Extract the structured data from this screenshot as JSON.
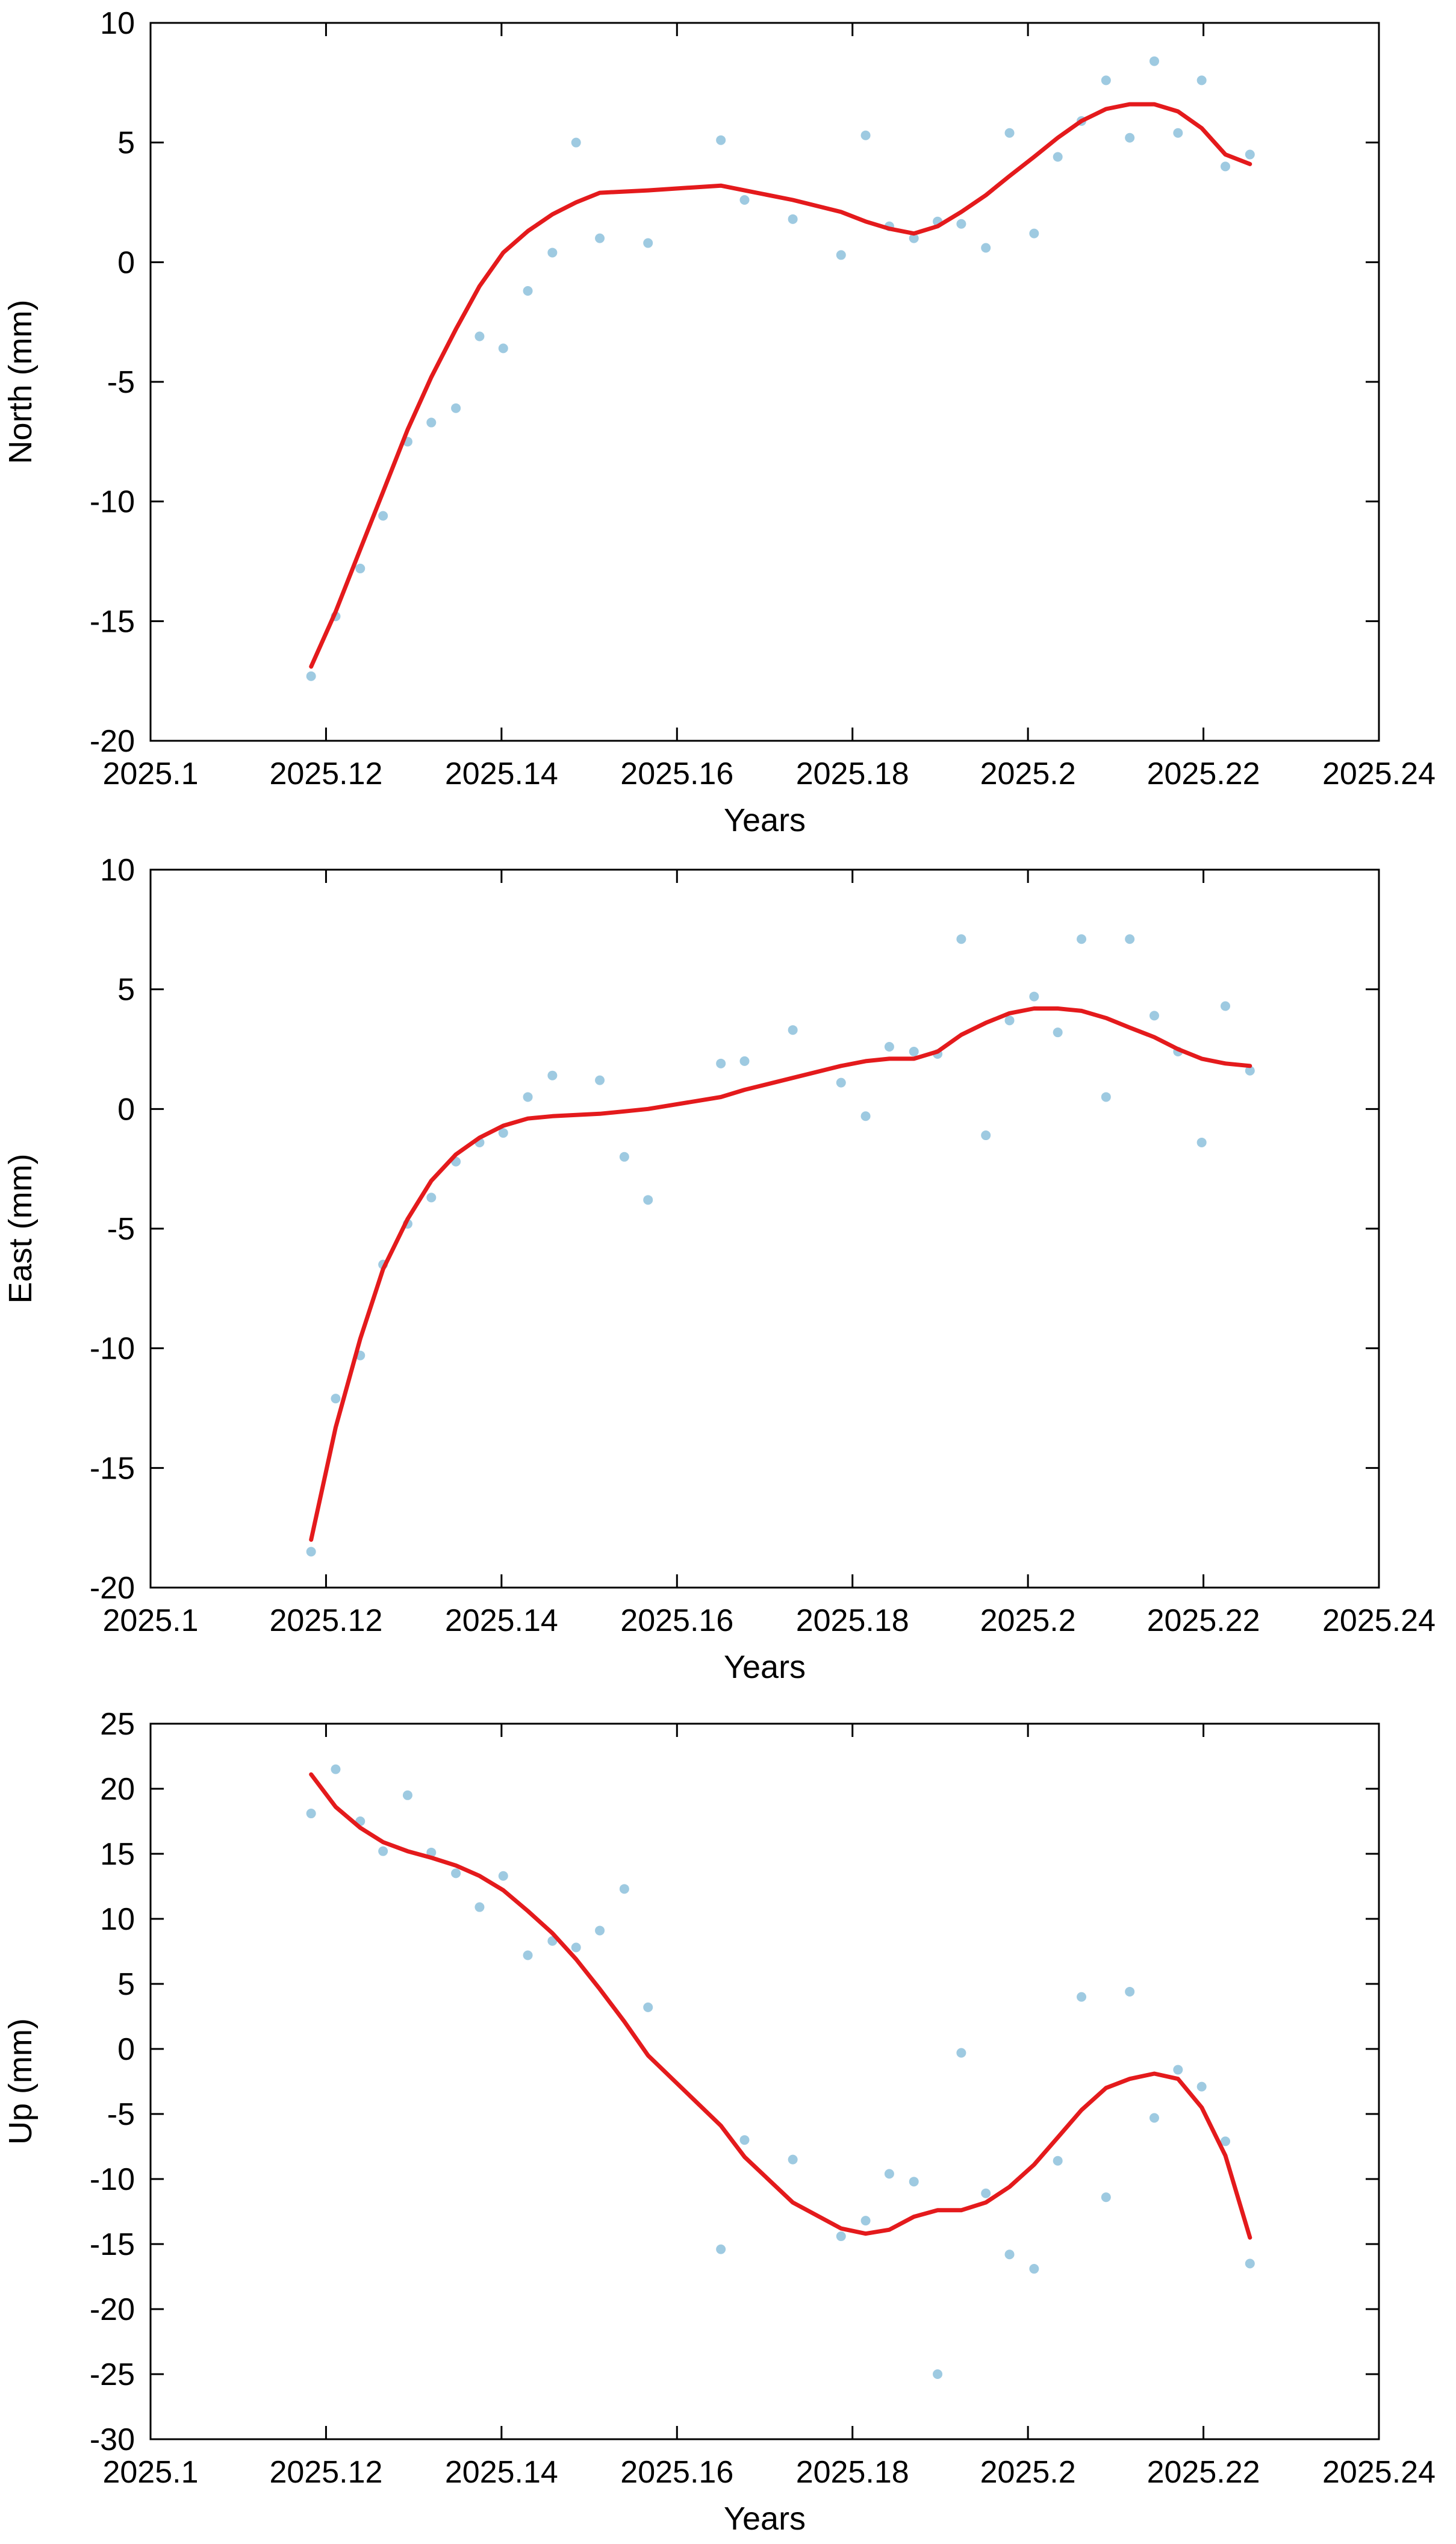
{
  "colors": {
    "points": "#9ecae1",
    "fit": "#e41a1c",
    "axis": "#000000"
  },
  "chart_data": [
    {
      "type": "scatter",
      "xlabel": "Years",
      "ylabel": "North (mm)",
      "xlim": [
        2025.1,
        2025.24
      ],
      "ylim": [
        -20,
        10
      ],
      "xticks": [
        "2025.1",
        "2025.12",
        "2025.14",
        "2025.16",
        "2025.18",
        "2025.2",
        "2025.22",
        "2025.24"
      ],
      "yticks": [
        "-20",
        "-15",
        "-10",
        "-5",
        "0",
        "5",
        "10"
      ],
      "grid": false,
      "series": [
        {
          "kind": "points",
          "x": [
            2025.1183,
            2025.1211,
            2025.1239,
            2025.1265,
            2025.1293,
            2025.132,
            2025.1348,
            2025.1375,
            2025.1402,
            2025.143,
            2025.1458,
            2025.1485,
            2025.1512,
            2025.1567,
            2025.165,
            2025.1677,
            2025.1732,
            2025.1787,
            2025.1815,
            2025.1842,
            2025.187,
            2025.1897,
            2025.1924,
            2025.1952,
            2025.1979,
            2025.2007,
            2025.2034,
            2025.2061,
            2025.2089,
            2025.2116,
            2025.2144,
            2025.2171,
            2025.2198,
            2025.2225,
            2025.2253
          ],
          "y": [
            -17.3,
            -14.8,
            -12.8,
            -10.6,
            -7.5,
            -6.7,
            -6.1,
            -3.1,
            -3.6,
            -1.2,
            0.4,
            5.0,
            1.0,
            0.8,
            5.1,
            2.6,
            1.8,
            0.3,
            5.3,
            1.5,
            1.0,
            1.7,
            1.6,
            0.6,
            5.4,
            1.2,
            4.4,
            5.9,
            7.6,
            5.2,
            8.4,
            5.4,
            7.6,
            4.0,
            4.5
          ]
        },
        {
          "kind": "fit",
          "x": [
            2025.1183,
            2025.1211,
            2025.1239,
            2025.1265,
            2025.1293,
            2025.132,
            2025.1348,
            2025.1375,
            2025.1402,
            2025.143,
            2025.1458,
            2025.1485,
            2025.1512,
            2025.1567,
            2025.165,
            2025.1677,
            2025.1732,
            2025.1787,
            2025.1815,
            2025.1842,
            2025.187,
            2025.1897,
            2025.1924,
            2025.1952,
            2025.1979,
            2025.2007,
            2025.2034,
            2025.2061,
            2025.2089,
            2025.2116,
            2025.2144,
            2025.2171,
            2025.2198,
            2025.2225,
            2025.2253
          ],
          "y": [
            -16.9,
            -14.6,
            -12.0,
            -9.6,
            -7.0,
            -4.8,
            -2.8,
            -1.0,
            0.4,
            1.3,
            2.0,
            2.5,
            2.9,
            3.0,
            3.2,
            3.0,
            2.6,
            2.1,
            1.7,
            1.4,
            1.2,
            1.5,
            2.1,
            2.8,
            3.6,
            4.4,
            5.2,
            5.9,
            6.4,
            6.6,
            6.6,
            6.3,
            5.6,
            4.5,
            4.1
          ]
        }
      ]
    },
    {
      "type": "scatter",
      "xlabel": "Years",
      "ylabel": "East (mm)",
      "xlim": [
        2025.1,
        2025.24
      ],
      "ylim": [
        -20,
        10
      ],
      "xticks": [
        "2025.1",
        "2025.12",
        "2025.14",
        "2025.16",
        "2025.18",
        "2025.2",
        "2025.22",
        "2025.24"
      ],
      "yticks": [
        "-20",
        "-15",
        "-10",
        "-5",
        "0",
        "5",
        "10"
      ],
      "grid": false,
      "series": [
        {
          "kind": "points",
          "x": [
            2025.1183,
            2025.1211,
            2025.1239,
            2025.1265,
            2025.1293,
            2025.132,
            2025.1348,
            2025.1375,
            2025.1402,
            2025.143,
            2025.1458,
            2025.1512,
            2025.154,
            2025.1567,
            2025.165,
            2025.1677,
            2025.1732,
            2025.1787,
            2025.1815,
            2025.1842,
            2025.187,
            2025.1897,
            2025.1924,
            2025.1952,
            2025.1979,
            2025.2007,
            2025.2034,
            2025.2061,
            2025.2089,
            2025.2116,
            2025.2144,
            2025.2171,
            2025.2198,
            2025.2225,
            2025.2253
          ],
          "y": [
            -18.5,
            -12.1,
            -10.3,
            -6.5,
            -4.8,
            -3.7,
            -2.2,
            -1.4,
            -1.0,
            0.5,
            1.4,
            1.2,
            -2.0,
            -3.8,
            1.9,
            2.0,
            3.3,
            1.1,
            -0.3,
            2.6,
            2.4,
            2.3,
            7.1,
            -1.1,
            3.7,
            4.7,
            3.2,
            7.1,
            0.5,
            7.1,
            3.9,
            2.4,
            -1.4,
            4.3,
            1.6
          ]
        },
        {
          "kind": "fit",
          "x": [
            2025.1183,
            2025.1211,
            2025.1239,
            2025.1265,
            2025.1293,
            2025.132,
            2025.1348,
            2025.1375,
            2025.1402,
            2025.143,
            2025.1458,
            2025.1512,
            2025.154,
            2025.1567,
            2025.165,
            2025.1677,
            2025.1732,
            2025.1787,
            2025.1815,
            2025.1842,
            2025.187,
            2025.1897,
            2025.1924,
            2025.1952,
            2025.1979,
            2025.2007,
            2025.2034,
            2025.2061,
            2025.2089,
            2025.2116,
            2025.2144,
            2025.2171,
            2025.2198,
            2025.2225,
            2025.2253
          ],
          "y": [
            -18.0,
            -13.3,
            -9.6,
            -6.7,
            -4.6,
            -3.0,
            -1.9,
            -1.2,
            -0.7,
            -0.4,
            -0.3,
            -0.2,
            -0.1,
            0.0,
            0.5,
            0.8,
            1.3,
            1.8,
            2.0,
            2.1,
            2.1,
            2.4,
            3.1,
            3.6,
            4.0,
            4.2,
            4.2,
            4.1,
            3.8,
            3.4,
            3.0,
            2.5,
            2.1,
            1.9,
            1.8
          ]
        }
      ]
    },
    {
      "type": "scatter",
      "xlabel": "Years",
      "ylabel": "Up (mm)",
      "xlim": [
        2025.1,
        2025.24
      ],
      "ylim": [
        -30,
        25
      ],
      "xticks": [
        "2025.1",
        "2025.12",
        "2025.14",
        "2025.16",
        "2025.18",
        "2025.2",
        "2025.22",
        "2025.24"
      ],
      "yticks": [
        "-30",
        "-25",
        "-20",
        "-15",
        "-10",
        "-5",
        "0",
        "5",
        "10",
        "15",
        "20",
        "25"
      ],
      "grid": false,
      "series": [
        {
          "kind": "points",
          "x": [
            2025.1183,
            2025.1211,
            2025.1239,
            2025.1265,
            2025.1293,
            2025.132,
            2025.1348,
            2025.1375,
            2025.1402,
            2025.143,
            2025.1458,
            2025.1485,
            2025.1512,
            2025.154,
            2025.1567,
            2025.165,
            2025.1677,
            2025.1732,
            2025.1787,
            2025.1815,
            2025.1842,
            2025.187,
            2025.1897,
            2025.1924,
            2025.1952,
            2025.1979,
            2025.2007,
            2025.2034,
            2025.2061,
            2025.2089,
            2025.2116,
            2025.2144,
            2025.2171,
            2025.2198,
            2025.2225,
            2025.2253
          ],
          "y": [
            18.1,
            21.5,
            17.5,
            15.2,
            19.5,
            15.1,
            13.5,
            10.9,
            13.3,
            7.2,
            8.3,
            7.8,
            9.1,
            12.3,
            3.2,
            -15.4,
            -7.0,
            -8.5,
            -14.4,
            -13.2,
            -9.6,
            -10.2,
            -25.0,
            -0.3,
            -11.1,
            -15.8,
            -16.9,
            -8.6,
            4.0,
            -11.4,
            4.4,
            -5.3,
            -1.6,
            -2.9,
            -7.1,
            -16.5
          ]
        },
        {
          "kind": "fit",
          "x": [
            2025.1183,
            2025.1211,
            2025.1239,
            2025.1265,
            2025.1293,
            2025.132,
            2025.1348,
            2025.1375,
            2025.1402,
            2025.143,
            2025.1458,
            2025.1485,
            2025.1512,
            2025.154,
            2025.1567,
            2025.165,
            2025.1677,
            2025.1732,
            2025.1787,
            2025.1815,
            2025.1842,
            2025.187,
            2025.1897,
            2025.1924,
            2025.1952,
            2025.1979,
            2025.2007,
            2025.2034,
            2025.2061,
            2025.2089,
            2025.2116,
            2025.2144,
            2025.2171,
            2025.2198,
            2025.2225,
            2025.2253
          ],
          "y": [
            21.1,
            18.6,
            17.0,
            15.9,
            15.2,
            14.7,
            14.1,
            13.3,
            12.2,
            10.6,
            8.9,
            6.9,
            4.6,
            2.1,
            -0.5,
            -5.9,
            -8.3,
            -11.8,
            -13.8,
            -14.2,
            -13.9,
            -12.9,
            -12.4,
            -12.4,
            -11.8,
            -10.6,
            -8.9,
            -6.8,
            -4.7,
            -3.0,
            -2.3,
            -1.9,
            -2.3,
            -4.5,
            -8.2,
            -14.5
          ]
        }
      ]
    }
  ]
}
